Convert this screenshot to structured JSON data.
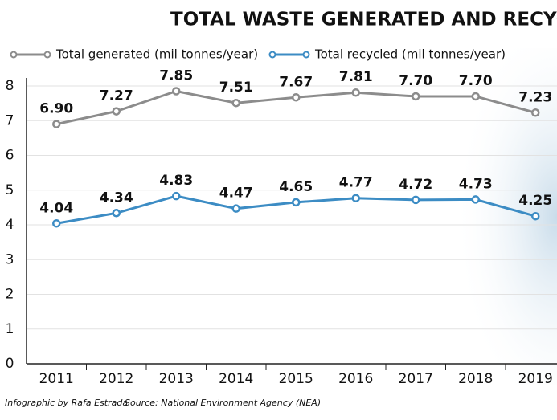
{
  "chart_data": {
    "type": "line",
    "title": "TOTAL WASTE GENERATED AND RECYCLED",
    "categories": [
      "2011",
      "2012",
      "2013",
      "2014",
      "2015",
      "2016",
      "2017",
      "2018",
      "2019"
    ],
    "series": [
      {
        "name": "Total generated (mil tonnes/year)",
        "color": "#8c8c8c",
        "values": [
          6.9,
          7.27,
          7.85,
          7.51,
          7.67,
          7.81,
          7.7,
          7.7,
          7.23
        ],
        "value_labels": [
          "6.90",
          "7.27",
          "7.85",
          "7.51",
          "7.67",
          "7.81",
          "7.70",
          "7.70",
          "7.23"
        ]
      },
      {
        "name": "Total recycled (mil tonnes/year)",
        "color": "#3c8cc4",
        "values": [
          4.04,
          4.34,
          4.83,
          4.47,
          4.65,
          4.77,
          4.72,
          4.73,
          4.25
        ],
        "value_labels": [
          "4.04",
          "4.34",
          "4.83",
          "4.47",
          "4.65",
          "4.77",
          "4.72",
          "4.73",
          "4.25"
        ]
      }
    ],
    "ylim": [
      0,
      8
    ],
    "yticks": [
      0,
      1,
      2,
      3,
      4,
      5,
      6,
      7,
      8
    ],
    "grid": true,
    "footnotes": [
      "Infographic by Rafa Estrada",
      "Source: National Environment Agency (NEA)"
    ]
  }
}
